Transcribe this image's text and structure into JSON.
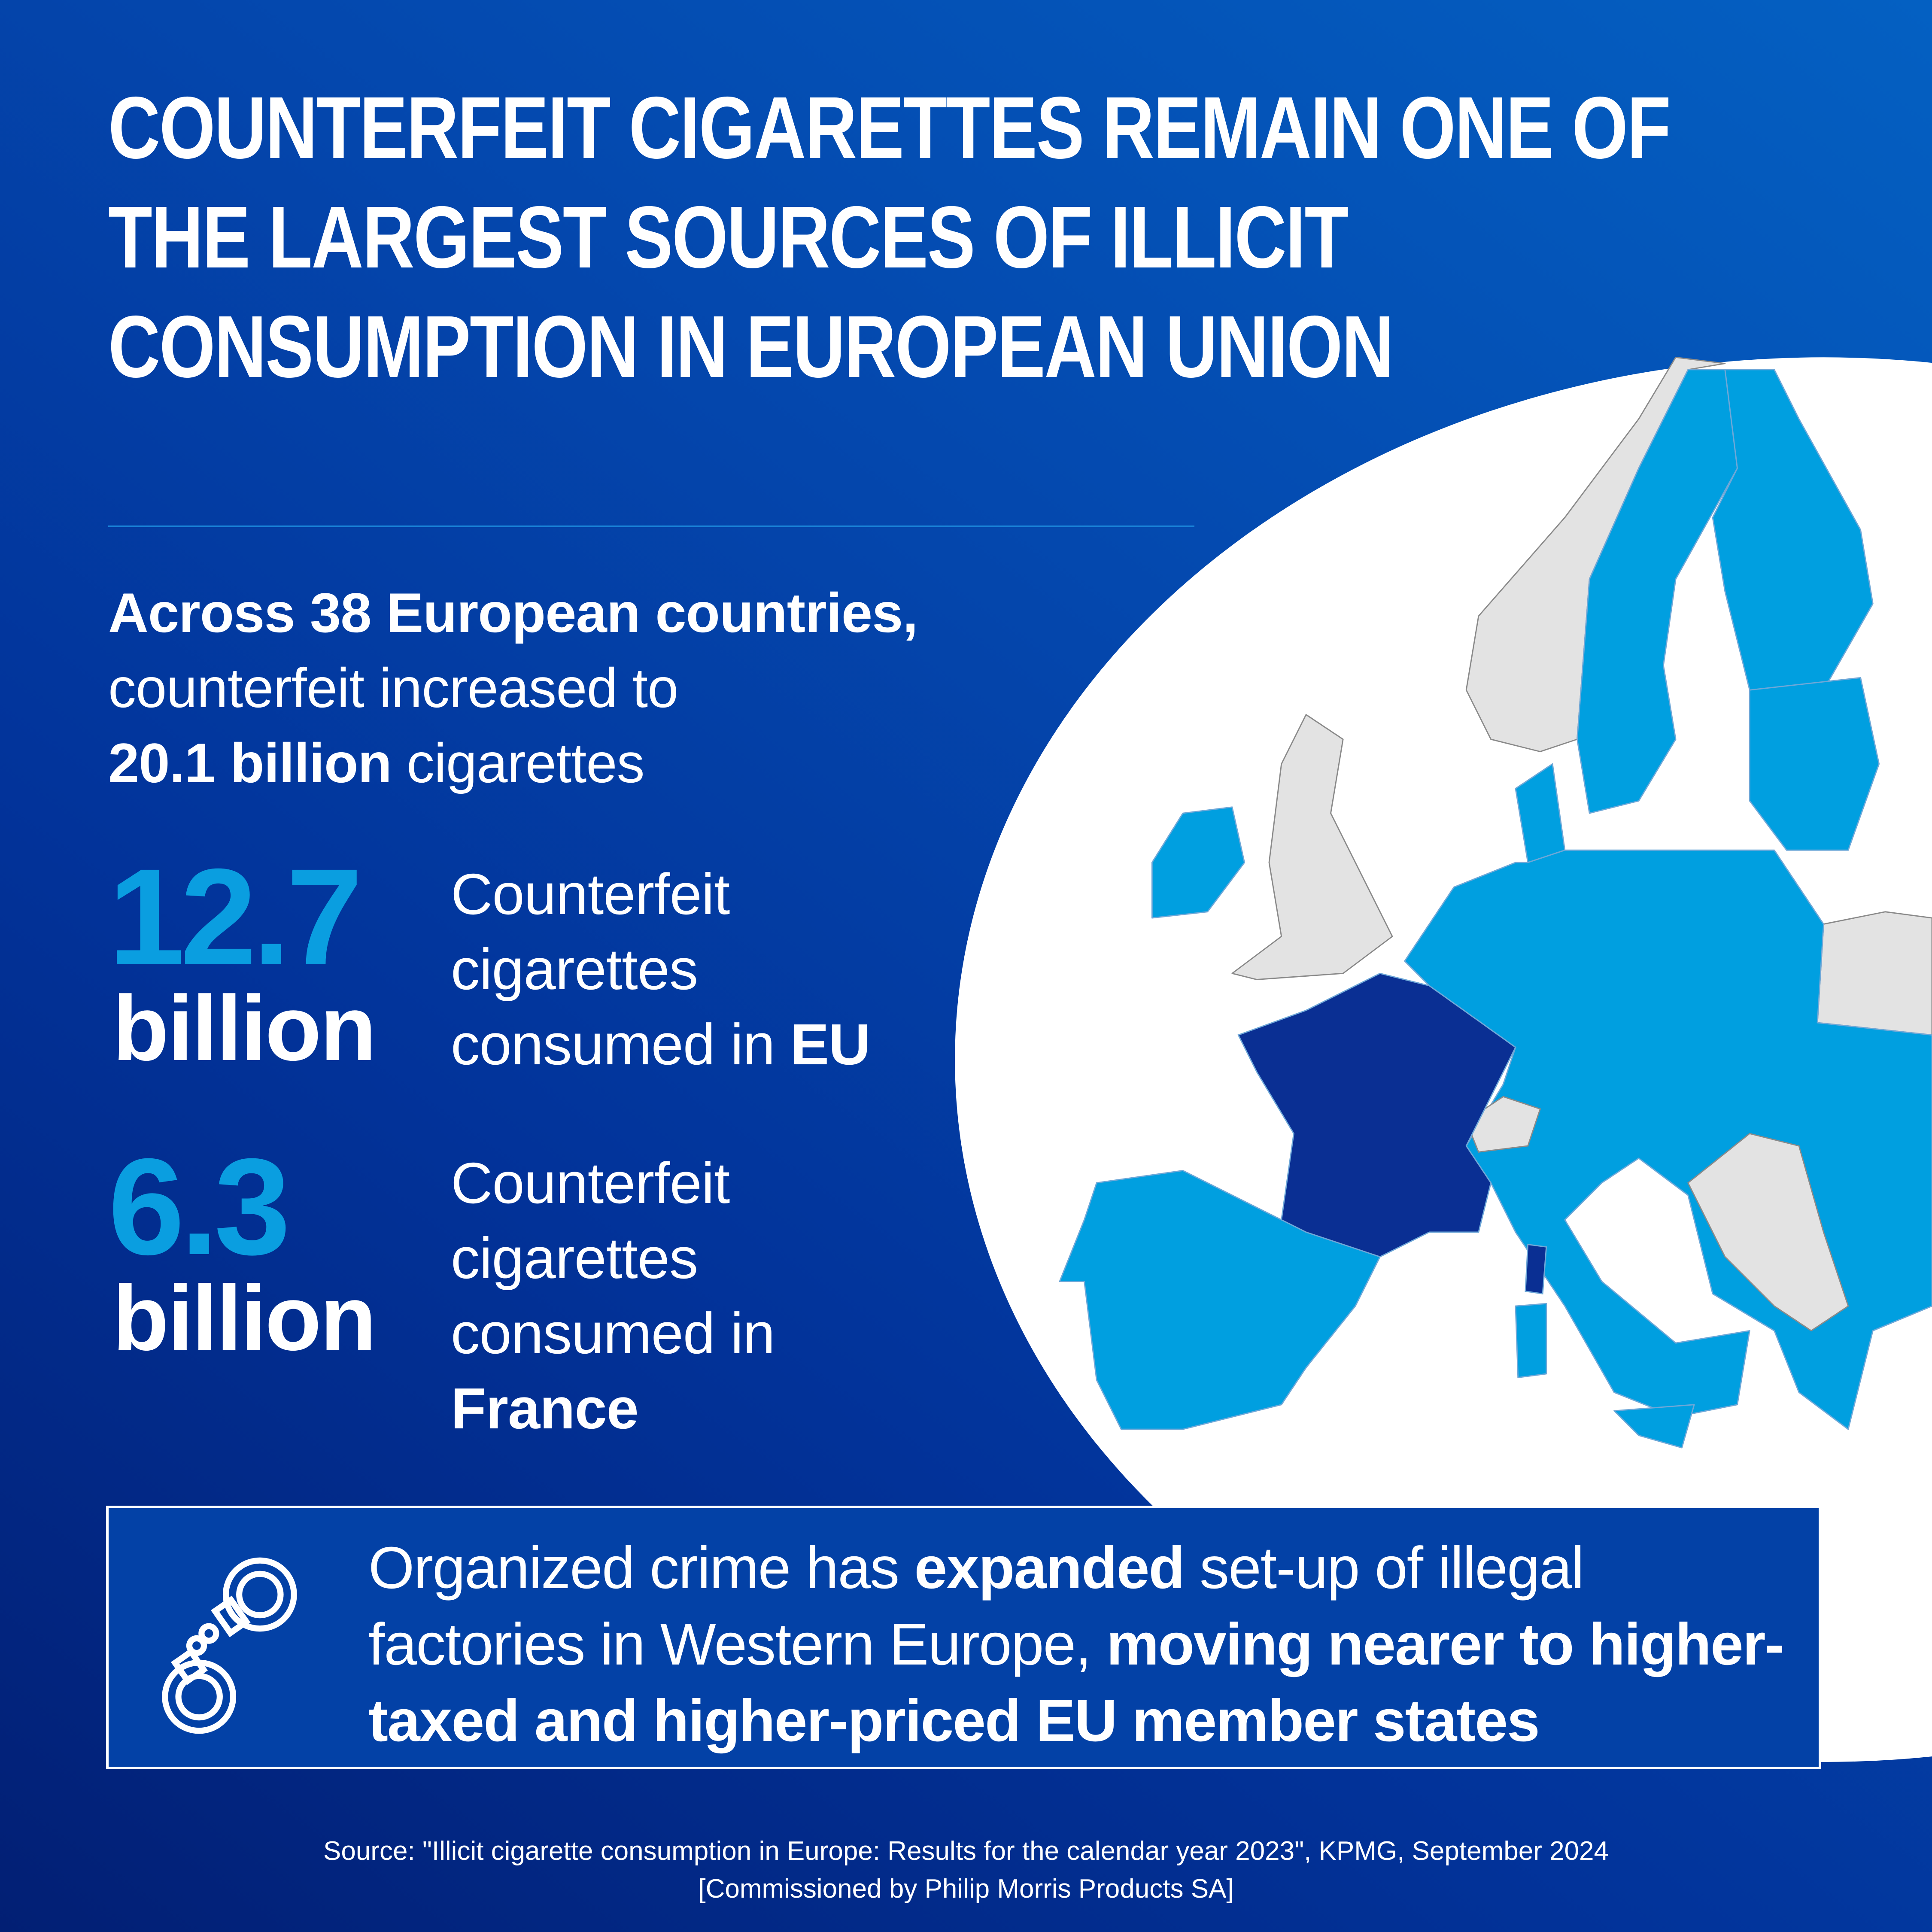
{
  "title": "COUNTERFEIT CIGARETTES REMAIN ONE OF THE LARGEST SOURCES OF ILLICIT CONSUMPTION IN EUROPEAN UNION",
  "intro": {
    "bold1": "Across 38 European countries,",
    "text1": "counterfeit increased to",
    "bold2": "20.1 billion",
    "text2": " cigarettes"
  },
  "stats": [
    {
      "number": "12.7",
      "unit": "billion",
      "line1": "Counterfeit",
      "line2": "cigarettes",
      "line3": "consumed in ",
      "place": "EU"
    },
    {
      "number": "6.3",
      "unit": "billion",
      "line1": "Counterfeit",
      "line2": "cigarettes",
      "line3": "consumed in",
      "place": "France"
    }
  ],
  "callout": {
    "icon": "handcuffs-icon",
    "t1": "Organized crime has ",
    "b1": "expanded",
    "t2": " set-up of illegal factories in Western Europe, ",
    "b2": "moving nearer to higher-taxed and higher-priced EU member states"
  },
  "source": {
    "line1": "Source: \"Illicit cigarette consumption in Europe: Results for the calendar year 2023\", KPMG, September 2024",
    "line2": "[Commissioned by Philip Morris Products SA]"
  },
  "colors": {
    "accent": "#0a9ee0",
    "eu_country": "#009fe0",
    "highlight_country": "#0a2f93",
    "non_eu_country": "#e3e3e3",
    "background_dark": "#021f74",
    "background_light": "#0460c2"
  }
}
